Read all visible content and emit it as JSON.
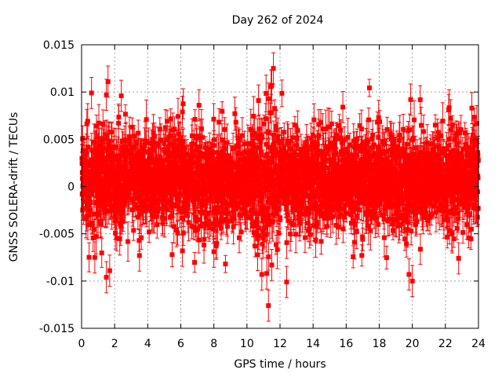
{
  "chart_data": {
    "type": "scatter",
    "title": "Day 262 of 2024",
    "xlabel": "GPS time / hours",
    "ylabel": "GNSS SOLERA-drift / TECUs",
    "xlim": [
      0,
      24
    ],
    "ylim": [
      -0.015,
      0.015
    ],
    "xticks": [
      "0",
      "2",
      "4",
      "6",
      "8",
      "10",
      "12",
      "14",
      "16",
      "18",
      "20",
      "22",
      "24"
    ],
    "yticks": [
      "0.015",
      "0.01",
      "0.005",
      "0",
      "-0.005",
      "-0.01",
      "-0.015"
    ],
    "xtick_values": [
      0,
      2,
      4,
      6,
      8,
      10,
      12,
      14,
      16,
      18,
      20,
      22,
      24
    ],
    "ytick_values": [
      0.015,
      0.01,
      0.005,
      0,
      -0.005,
      -0.01,
      -0.015
    ],
    "grid": true,
    "series": [
      {
        "color": "#ff0000",
        "marker": "square",
        "error_bars": true,
        "sampling_interval_hours": 0.00833,
        "typical_error": 0.0015,
        "notable_points": [
          {
            "x": 0.6,
            "y": 0.0099
          },
          {
            "x": 1.6,
            "y": 0.0111
          },
          {
            "x": 1.5,
            "y": 0.0097
          },
          {
            "x": 2.4,
            "y": 0.0096
          },
          {
            "x": 6.1,
            "y": 0.0079
          },
          {
            "x": 7.1,
            "y": 0.0086
          },
          {
            "x": 10.7,
            "y": 0.0091
          },
          {
            "x": 11.3,
            "y": 0.0093
          },
          {
            "x": 11.6,
            "y": 0.0125
          },
          {
            "x": 11.5,
            "y": 0.0107
          },
          {
            "x": 15.8,
            "y": 0.0084
          },
          {
            "x": 19.9,
            "y": 0.0092
          },
          {
            "x": 22.2,
            "y": 0.0081
          },
          {
            "x": 23.6,
            "y": 0.0083
          },
          {
            "x": 1.5,
            "y": -0.0096
          },
          {
            "x": 1.7,
            "y": -0.0089
          },
          {
            "x": 3.5,
            "y": -0.0073
          },
          {
            "x": 0.8,
            "y": -0.0075
          },
          {
            "x": 6.1,
            "y": -0.0068
          },
          {
            "x": 8.0,
            "y": -0.0069
          },
          {
            "x": 10.9,
            "y": -0.0093
          },
          {
            "x": 11.3,
            "y": -0.0126
          },
          {
            "x": 11.2,
            "y": -0.0092
          },
          {
            "x": 11.5,
            "y": -0.0083
          },
          {
            "x": 12.4,
            "y": -0.0101
          },
          {
            "x": 19.8,
            "y": -0.0093
          },
          {
            "x": 20.0,
            "y": -0.01
          },
          {
            "x": 22.8,
            "y": -0.0076
          }
        ]
      }
    ]
  }
}
